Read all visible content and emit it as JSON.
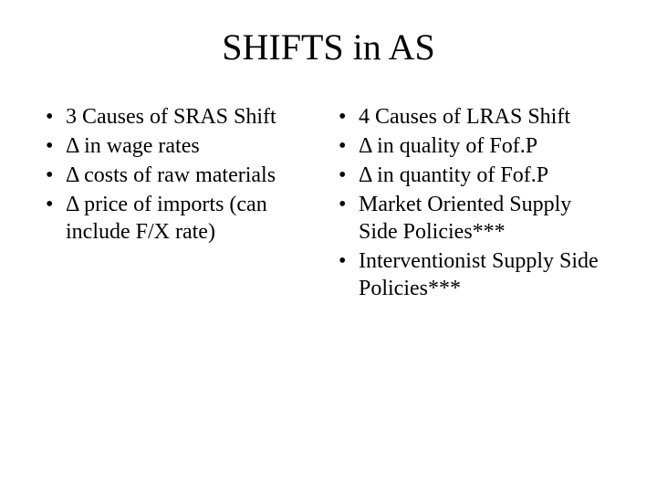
{
  "title": "SHIFTS in AS",
  "left_column": {
    "items": [
      "3 Causes of SRAS Shift",
      "Δ in wage rates",
      "Δ costs of raw materials",
      "Δ price of imports (can include F/X rate)"
    ]
  },
  "right_column": {
    "items": [
      "4 Causes of LRAS Shift",
      "Δ in quality of Fof.P",
      "Δ in quantity of Fof.P",
      "Market Oriented Supply Side Policies***",
      "Interventionist Supply Side Policies***"
    ]
  },
  "bullet_marker": "•",
  "styling": {
    "background_color": "#ffffff",
    "text_color": "#000000",
    "title_fontsize": 40,
    "body_fontsize": 24,
    "font_family": "Times New Roman"
  }
}
